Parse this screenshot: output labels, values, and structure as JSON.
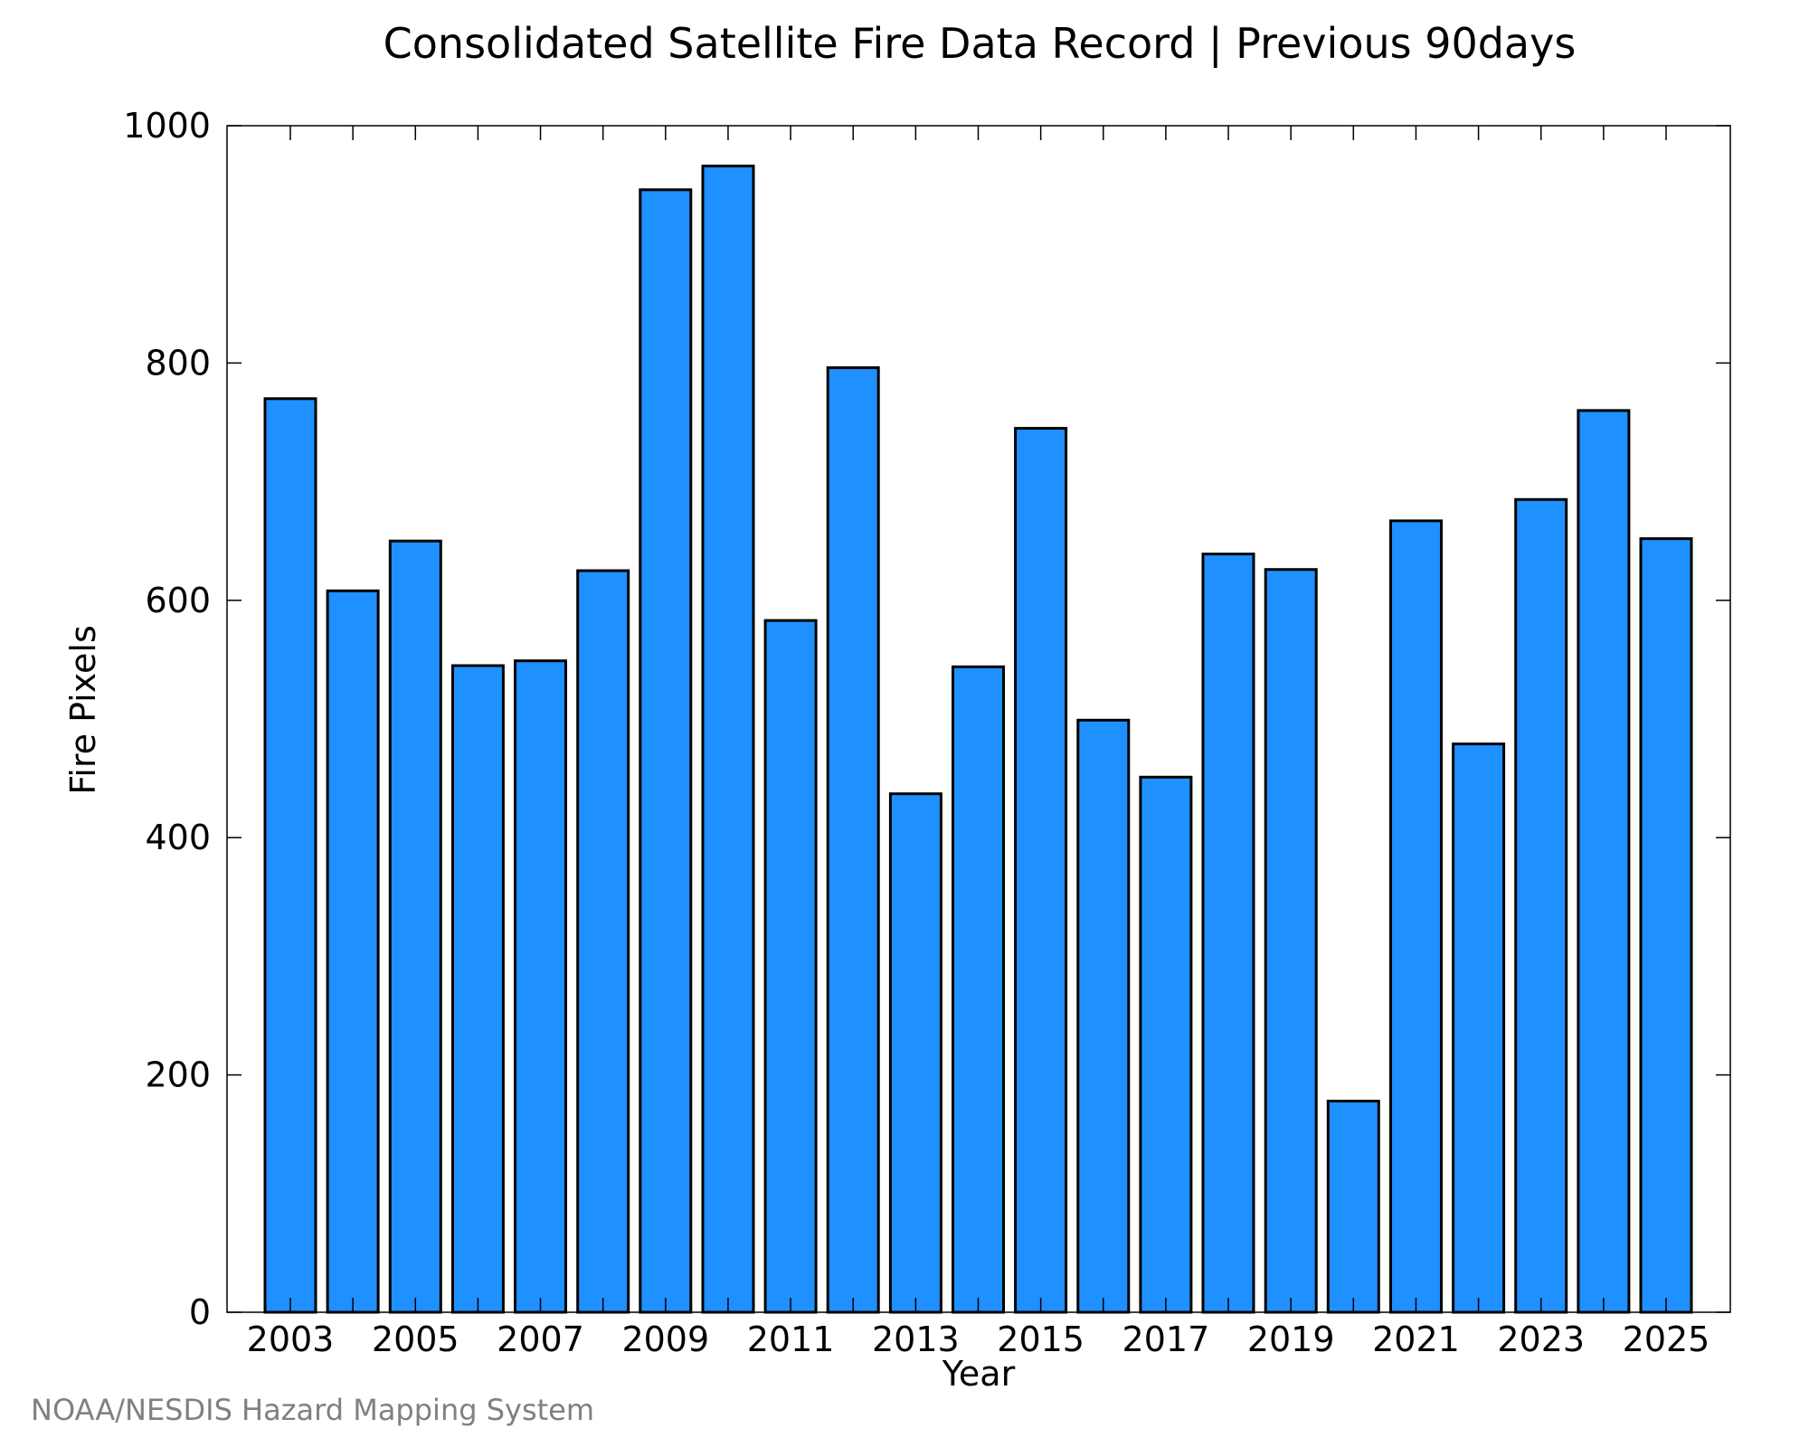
{
  "chart_data": {
    "type": "bar",
    "title": "Consolidated Satellite Fire Data Record | Previous 90days",
    "xlabel": "Year",
    "ylabel": "Fire Pixels",
    "categories": [
      "2003",
      "2004",
      "2005",
      "2006",
      "2007",
      "2008",
      "2009",
      "2010",
      "2011",
      "2012",
      "2013",
      "2014",
      "2015",
      "2016",
      "2017",
      "2018",
      "2019",
      "2020",
      "2021",
      "2022",
      "2023",
      "2024",
      "2025"
    ],
    "values": [
      770,
      608,
      650,
      545,
      549,
      625,
      946,
      966,
      583,
      796,
      437,
      544,
      745,
      499,
      451,
      639,
      626,
      178,
      667,
      479,
      685,
      760,
      652
    ],
    "ylim": [
      0,
      1000
    ],
    "yticks": [
      0,
      200,
      400,
      600,
      800,
      1000
    ],
    "ytick_labels": [
      "0",
      "200",
      "400",
      "600",
      "800",
      "1000"
    ],
    "xtick_labels": [
      "2003",
      "2005",
      "2007",
      "2009",
      "2011",
      "2013",
      "2015",
      "2017",
      "2019",
      "2021",
      "2023",
      "2025"
    ],
    "grid": false,
    "legend": "none",
    "bar_color": "#1E90FF",
    "bar_edge_color": "#000000"
  },
  "credit": "NOAA/NESDIS Hazard Mapping System"
}
